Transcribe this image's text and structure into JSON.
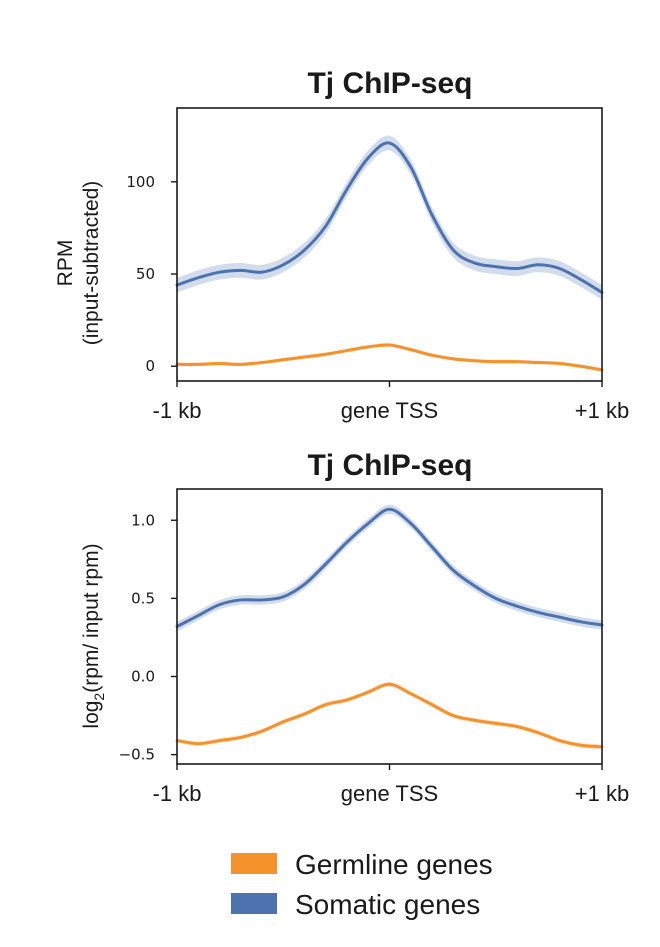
{
  "chart_data": [
    {
      "type": "line",
      "title": "Tj ChIP-seq",
      "ylabel_lines": [
        "RPM",
        "(input-subtracted)"
      ],
      "xlabel": "",
      "x_tick_labels": [
        "-1 kb",
        "gene TSS",
        "+1 kb"
      ],
      "x_ticks": [
        -1000,
        0,
        1000
      ],
      "x": [
        -1000,
        -900,
        -800,
        -700,
        -600,
        -500,
        -400,
        -300,
        -200,
        -100,
        0,
        100,
        200,
        300,
        400,
        500,
        600,
        700,
        800,
        900,
        1000
      ],
      "xlim": [
        -1000,
        1000
      ],
      "ylim": [
        -8,
        140
      ],
      "y_ticks": [
        0,
        50,
        100
      ],
      "y_tick_labels": [
        "0",
        "50",
        "100"
      ],
      "series": [
        {
          "name": "Somatic genes",
          "color": "#4c72b0",
          "values": [
            44,
            48,
            51,
            52,
            51,
            55,
            63,
            76,
            96,
            113,
            121,
            108,
            82,
            63,
            56,
            54,
            53,
            55,
            53,
            47,
            40
          ],
          "band": 4
        },
        {
          "name": "Germline genes",
          "color": "#f5922b",
          "values": [
            1,
            1,
            1.5,
            1,
            2,
            3.5,
            5,
            6.5,
            8.5,
            10.5,
            11.5,
            9,
            6,
            4,
            3,
            2.5,
            2.5,
            2,
            1.5,
            0,
            -2
          ],
          "band": 1
        }
      ]
    },
    {
      "type": "line",
      "title": "Tj ChIP-seq",
      "ylabel_lines": [
        "log2(rpm/ input rpm)"
      ],
      "ylabel_main": "log",
      "ylabel_sub": "2",
      "ylabel_rest": "(rpm/ input rpm)",
      "xlabel": "",
      "x_tick_labels": [
        "-1 kb",
        "gene TSS",
        "+1 kb"
      ],
      "x_ticks": [
        -1000,
        0,
        1000
      ],
      "x": [
        -1000,
        -900,
        -800,
        -700,
        -600,
        -500,
        -400,
        -300,
        -200,
        -100,
        0,
        100,
        200,
        300,
        400,
        500,
        600,
        700,
        800,
        900,
        1000
      ],
      "xlim": [
        -1000,
        1000
      ],
      "ylim": [
        -0.56,
        1.2
      ],
      "y_ticks": [
        -0.5,
        0.0,
        0.5,
        1.0
      ],
      "y_tick_labels": [
        "−0.5",
        "0.0",
        "0.5",
        "1.0"
      ],
      "series": [
        {
          "name": "Somatic genes",
          "color": "#4c72b0",
          "values": [
            0.32,
            0.39,
            0.46,
            0.49,
            0.49,
            0.51,
            0.59,
            0.72,
            0.86,
            0.98,
            1.07,
            0.98,
            0.83,
            0.68,
            0.58,
            0.5,
            0.45,
            0.41,
            0.38,
            0.35,
            0.33
          ],
          "band": 0.03
        },
        {
          "name": "Germline genes",
          "color": "#f5922b",
          "values": [
            -0.41,
            -0.43,
            -0.41,
            -0.39,
            -0.35,
            -0.29,
            -0.24,
            -0.18,
            -0.15,
            -0.1,
            -0.05,
            -0.11,
            -0.18,
            -0.25,
            -0.28,
            -0.3,
            -0.32,
            -0.36,
            -0.41,
            -0.44,
            -0.45
          ],
          "band": 0.015
        }
      ]
    }
  ],
  "legend": [
    {
      "label": "Germline genes",
      "color": "#f5922b"
    },
    {
      "label": "Somatic genes",
      "color": "#4c72b0"
    }
  ]
}
